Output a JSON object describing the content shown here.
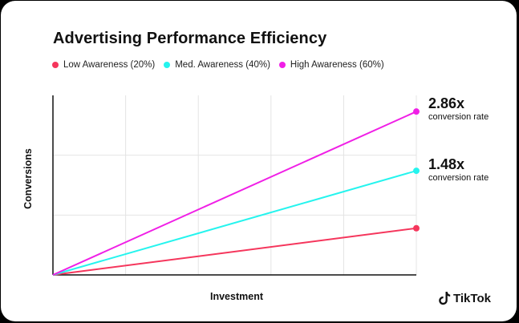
{
  "chart_data": {
    "type": "line",
    "title": "Advertising Performance Efficiency",
    "xlabel": "Investment",
    "ylabel": "Conversions",
    "grid": true,
    "legend_position": "top-left",
    "xlim": [
      0,
      5
    ],
    "ylim": [
      0,
      3
    ],
    "series": [
      {
        "name": "Low Awareness (20%)",
        "color": "#f5365c",
        "x": [
          0,
          5
        ],
        "values": [
          0,
          0.78
        ]
      },
      {
        "name": "Med. Awareness (40%)",
        "color": "#25f4ee",
        "x": [
          0,
          5
        ],
        "values": [
          0,
          1.74
        ]
      },
      {
        "name": "High Awareness (60%)",
        "color": "#f01fe6",
        "x": [
          0,
          5
        ],
        "values": [
          0,
          2.73
        ]
      }
    ],
    "annotations": [
      {
        "value": "2.86x",
        "caption": "conversion rate"
      },
      {
        "value": "1.48x",
        "caption": "conversion rate"
      }
    ]
  },
  "brand": {
    "name": "TikTok",
    "icon": "tiktok-note-icon"
  }
}
